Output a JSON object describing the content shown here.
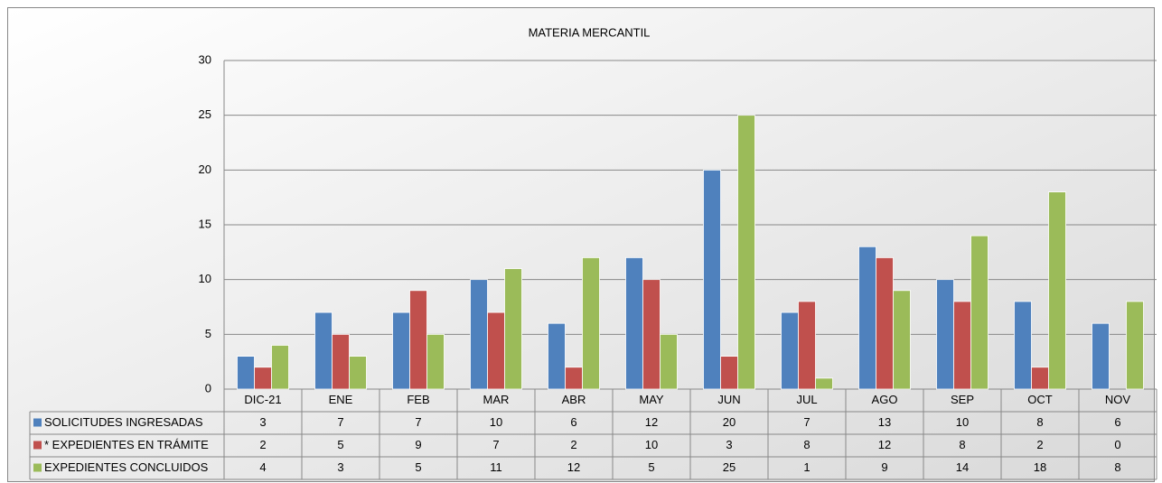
{
  "chart_data": {
    "type": "bar",
    "title": "MATERIA MERCANTIL",
    "categories": [
      "DIC-21",
      "ENE",
      "FEB",
      "MAR",
      "ABR",
      "MAY",
      "JUN",
      "JUL",
      "AGO",
      "SEP",
      "OCT",
      "NOV"
    ],
    "series": [
      {
        "name": "SOLICITUDES INGRESADAS",
        "color": "#4f81bd",
        "values": [
          3,
          7,
          7,
          10,
          6,
          12,
          20,
          7,
          13,
          10,
          8,
          6
        ]
      },
      {
        "name": "* EXPEDIENTES EN TRÁMITE",
        "color": "#c0504d",
        "values": [
          2,
          5,
          9,
          7,
          2,
          10,
          3,
          8,
          12,
          8,
          2,
          0
        ]
      },
      {
        "name": "EXPEDIENTES CONCLUIDOS",
        "color": "#9bbb59",
        "values": [
          4,
          3,
          5,
          11,
          12,
          5,
          25,
          1,
          9,
          14,
          18,
          8
        ]
      }
    ],
    "ylim": [
      0,
      30
    ],
    "yticks": [
      0,
      5,
      10,
      15,
      20,
      25,
      30
    ],
    "grid": true
  }
}
